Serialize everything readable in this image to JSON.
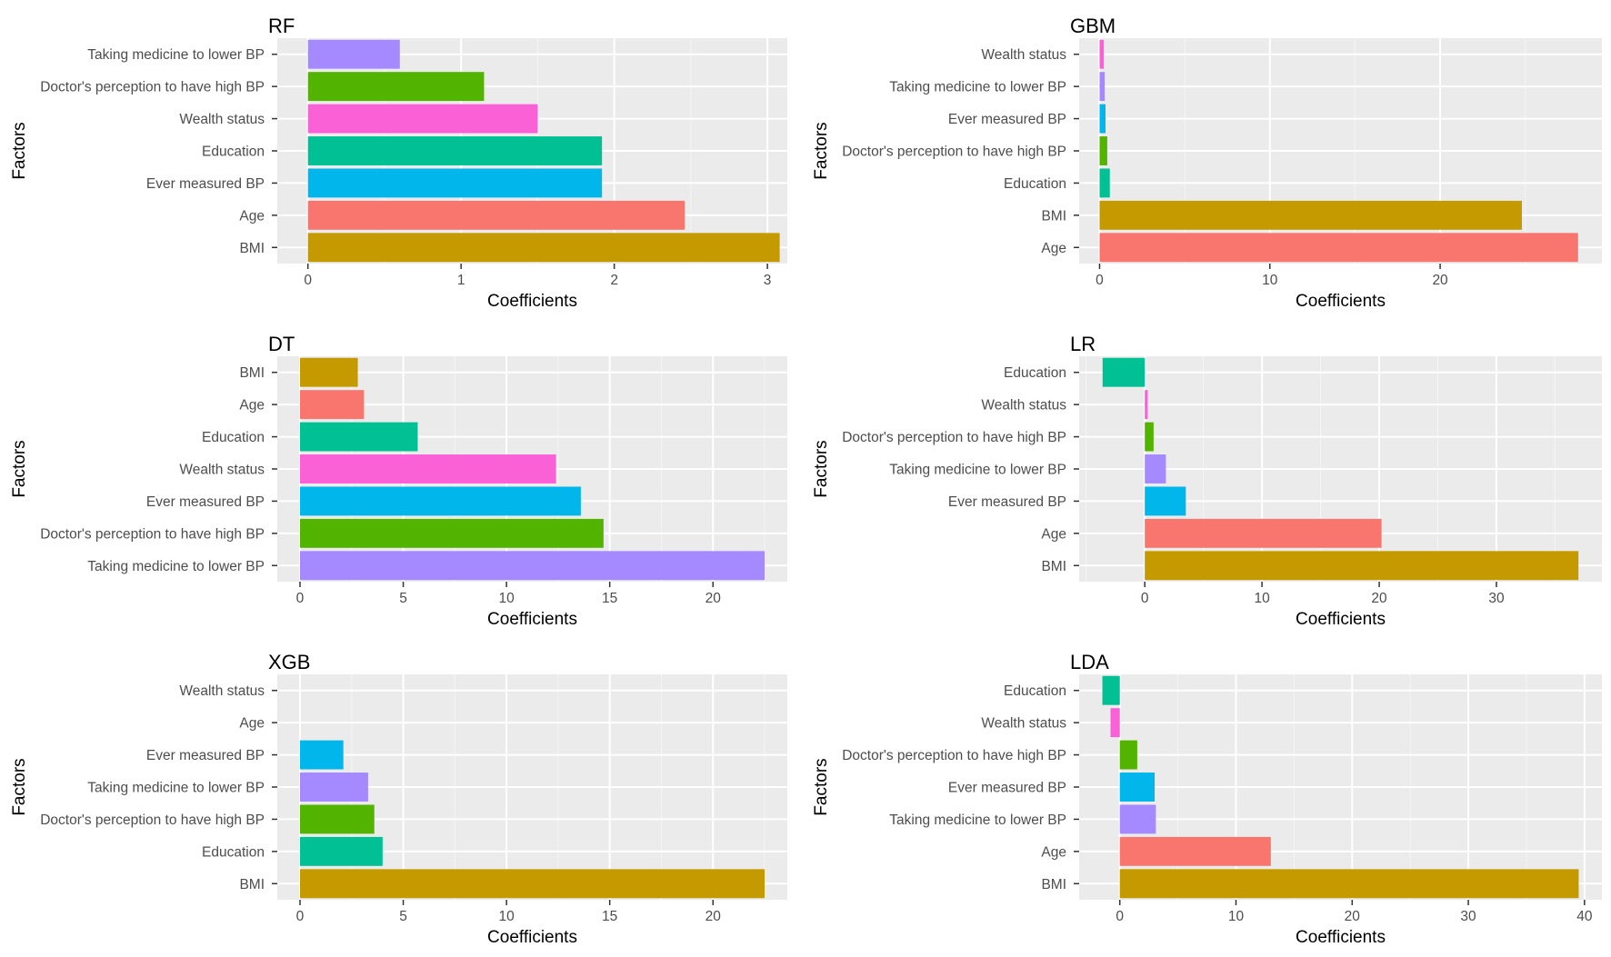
{
  "chart_data": [
    {
      "type": "bar",
      "orientation": "horizontal",
      "title": "RF",
      "xlabel": "Coefficients",
      "ylabel": "Factors",
      "xlim": [
        -0.2,
        3.13
      ],
      "xticks": [
        0,
        1,
        2,
        3
      ],
      "categories": [
        "Taking medicine to lower BP",
        "Doctor's perception to have high BP",
        "Wealth status",
        "Education",
        "Ever measured BP",
        "Age",
        "BMI"
      ],
      "values": [
        0.6,
        1.15,
        1.5,
        1.92,
        1.92,
        2.46,
        3.08
      ]
    },
    {
      "type": "bar",
      "orientation": "horizontal",
      "title": "GBM",
      "xlabel": "Coefficients",
      "ylabel": "Factors",
      "xlim": [
        -1.2,
        29.5
      ],
      "xticks": [
        0,
        10,
        20
      ],
      "categories": [
        "Wealth status",
        "Taking medicine to lower BP",
        "Ever measured BP",
        "Doctor's perception to have high BP",
        "Education",
        "BMI",
        "Age"
      ],
      "values": [
        0.25,
        0.3,
        0.35,
        0.45,
        0.6,
        24.8,
        28.1
      ]
    },
    {
      "type": "bar",
      "orientation": "horizontal",
      "title": "DT",
      "xlabel": "Coefficients",
      "ylabel": "Factors",
      "xlim": [
        -1.1,
        23.6
      ],
      "xticks": [
        0,
        5,
        10,
        15,
        20
      ],
      "categories": [
        "BMI",
        "Age",
        "Education",
        "Wealth status",
        "Ever measured BP",
        "Doctor's perception to have high BP",
        "Taking medicine to lower BP"
      ],
      "values": [
        2.8,
        3.1,
        5.7,
        12.4,
        13.6,
        14.7,
        22.5
      ]
    },
    {
      "type": "bar",
      "orientation": "horizontal",
      "title": "LR",
      "xlabel": "Coefficients",
      "ylabel": "Factors",
      "xlim": [
        -5.6,
        39.0
      ],
      "xticks": [
        0,
        10,
        20,
        30
      ],
      "categories": [
        "Education",
        "Wealth status",
        "Doctor's perception to have high BP",
        "Taking medicine to lower BP",
        "Ever measured BP",
        "Age",
        "BMI"
      ],
      "values": [
        -3.6,
        0.25,
        0.75,
        1.8,
        3.5,
        20.2,
        37.0
      ]
    },
    {
      "type": "bar",
      "orientation": "horizontal",
      "title": "XGB",
      "xlabel": "Coefficients",
      "ylabel": "Factors",
      "xlim": [
        -1.1,
        23.6
      ],
      "xticks": [
        0,
        5,
        10,
        15,
        20
      ],
      "categories": [
        "Wealth status",
        "Age",
        "Ever measured BP",
        "Taking medicine to lower BP",
        "Doctor's perception to have high BP",
        "Education",
        "BMI"
      ],
      "values": [
        0,
        0,
        2.1,
        3.3,
        3.6,
        4.0,
        22.5
      ]
    },
    {
      "type": "bar",
      "orientation": "horizontal",
      "title": "LDA",
      "xlabel": "Coefficients",
      "ylabel": "Factors",
      "xlim": [
        -3.5,
        41.5
      ],
      "xticks": [
        0,
        10,
        20,
        30,
        40
      ],
      "categories": [
        "Education",
        "Wealth status",
        "Doctor's perception to have high BP",
        "Ever measured BP",
        "Taking medicine to lower BP",
        "Age",
        "BMI"
      ],
      "values": [
        -1.5,
        -0.8,
        1.5,
        3.0,
        3.1,
        13.0,
        39.5
      ]
    }
  ],
  "colors": {
    "Taking medicine to lower BP": "#A58AFF",
    "Doctor's perception to have high BP": "#53B400",
    "Wealth status": "#FB61D7",
    "Education": "#00C094",
    "Ever measured BP": "#00B6EB",
    "Age": "#F8766D",
    "BMI": "#C49A00",
    "panel_background": "#EBEBEB",
    "grid_major": "#FFFFFF"
  }
}
